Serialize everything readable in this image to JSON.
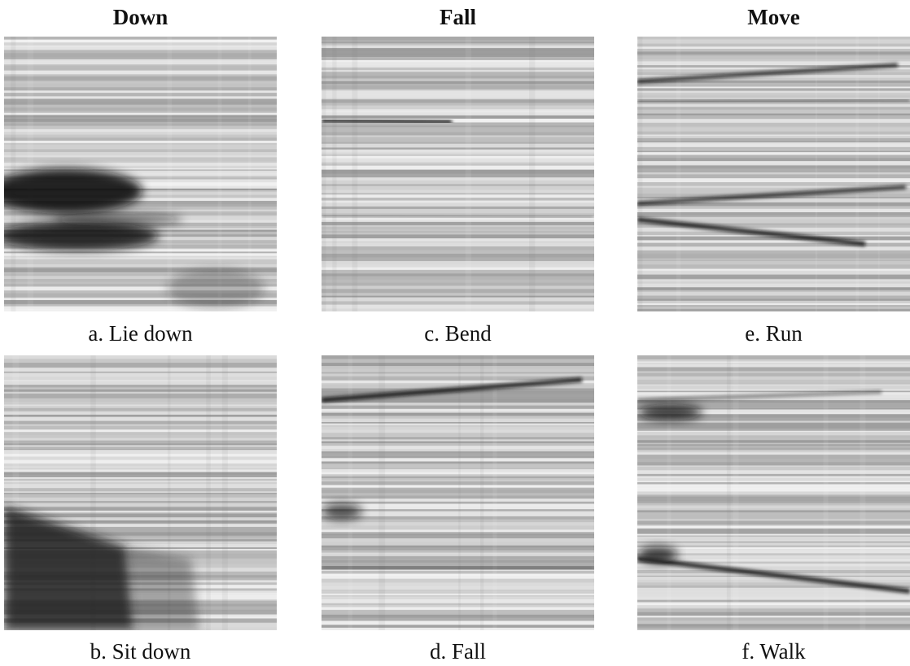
{
  "columns": [
    {
      "title": "Down",
      "panels": [
        {
          "caption": "a. Lie down"
        },
        {
          "caption": "b. Sit down"
        }
      ]
    },
    {
      "title": "Fall",
      "panels": [
        {
          "caption": "c. Bend"
        },
        {
          "caption": "d. Fall"
        }
      ]
    },
    {
      "title": "Move",
      "panels": [
        {
          "caption": "e. Run"
        },
        {
          "caption": "f. Walk"
        }
      ]
    }
  ]
}
